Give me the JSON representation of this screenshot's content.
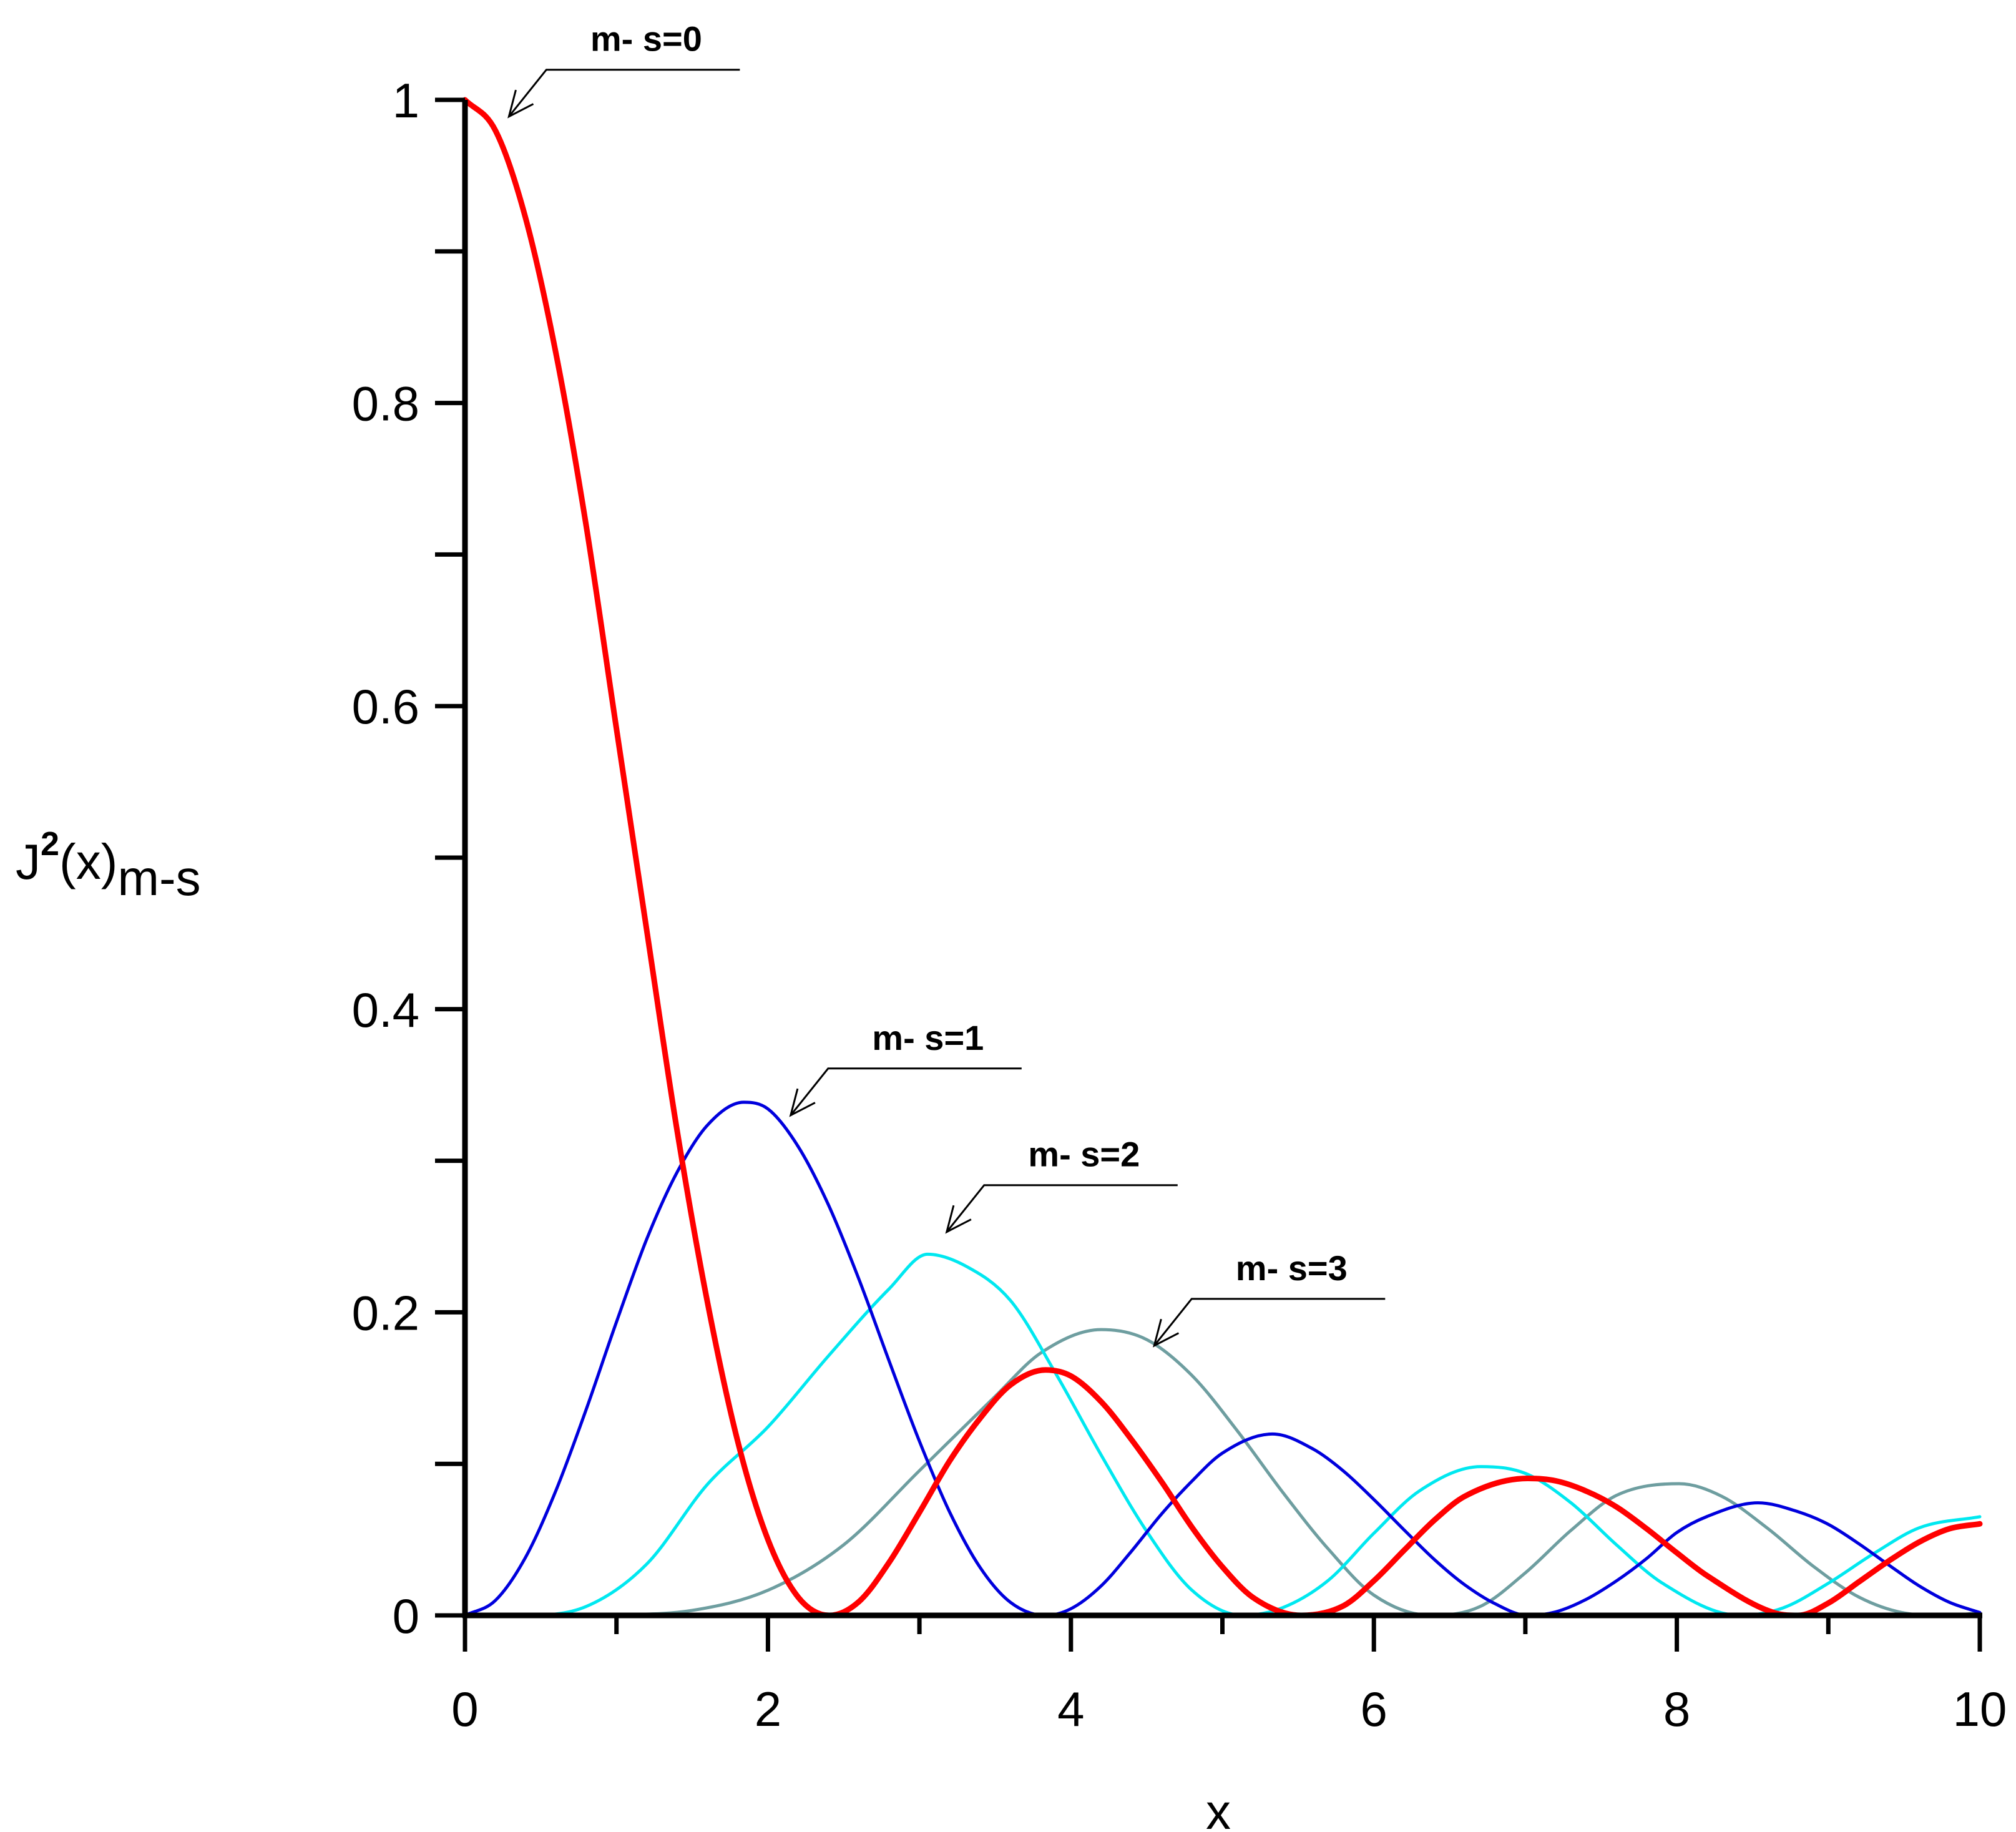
{
  "chart_data": {
    "type": "line",
    "xlabel": "x",
    "ylabel": {
      "base": "J",
      "superscript": "2",
      "middle": "(x)",
      "subscript": "m-s"
    },
    "xlim": [
      0,
      10
    ],
    "ylim": [
      0,
      1
    ],
    "x_ticks": [
      0,
      2,
      4,
      6,
      8,
      10
    ],
    "x_tick_labels": [
      "0",
      "2",
      "4",
      "6",
      "8",
      "10"
    ],
    "x_minor_step": 1,
    "y_ticks": [
      0,
      0.2,
      0.4,
      0.6,
      0.8,
      1
    ],
    "y_tick_labels": [
      "0",
      "0.2",
      "0.4",
      "0.6",
      "0.8",
      "1"
    ],
    "y_minor_step": 0.1,
    "grid": false,
    "legend": "none",
    "series": [
      {
        "order": 0,
        "color": "#ff0000",
        "stroke": "thick",
        "x": [
          0,
          0.2,
          0.4,
          0.6,
          0.8,
          1.0,
          1.2,
          1.4,
          1.6,
          1.8,
          2.0,
          2.2,
          2.405,
          2.6,
          2.8,
          3.0,
          3.2,
          3.4,
          3.6,
          3.832,
          4.0,
          4.2,
          4.4,
          4.6,
          4.8,
          5.0,
          5.2,
          5.52,
          5.8,
          6.0,
          6.2,
          6.4,
          6.6,
          7.016,
          7.2,
          7.4,
          7.6,
          7.8,
          8.0,
          8.2,
          8.654,
          8.8,
          9.0,
          9.2,
          9.4,
          9.6,
          9.8,
          10.0
        ],
        "y": [
          1.0,
          0.98,
          0.922,
          0.833,
          0.719,
          0.585,
          0.452,
          0.32,
          0.207,
          0.115,
          0.05,
          0.012,
          0.0,
          0.009,
          0.035,
          0.068,
          0.102,
          0.13,
          0.152,
          0.162,
          0.158,
          0.141,
          0.116,
          0.088,
          0.058,
          0.032,
          0.012,
          0.0,
          0.0064,
          0.0228,
          0.043,
          0.0629,
          0.0786,
          0.0904,
          0.0888,
          0.0821,
          0.0717,
          0.0572,
          0.0413,
          0.0262,
          0.0014,
          0.0,
          0.0081,
          0.022,
          0.036,
          0.0484,
          0.0572,
          0.0604
        ]
      },
      {
        "order": 1,
        "color": "#0000dd",
        "stroke": "normal",
        "x": [
          0,
          0.2,
          0.4,
          0.6,
          0.8,
          1.0,
          1.2,
          1.4,
          1.6,
          1.841,
          2.0,
          2.2,
          2.4,
          2.6,
          2.8,
          3.0,
          3.2,
          3.4,
          3.6,
          3.832,
          4.0,
          4.2,
          4.4,
          4.6,
          4.8,
          5.0,
          5.331,
          5.6,
          5.8,
          6.0,
          6.2,
          6.4,
          6.6,
          6.8,
          7.016,
          7.2,
          7.4,
          7.6,
          7.8,
          8.0,
          8.2,
          8.536,
          8.8,
          9.0,
          9.2,
          9.4,
          9.6,
          9.8,
          10.0
        ],
        "y": [
          0,
          0.0098,
          0.0384,
          0.0823,
          0.1359,
          0.1936,
          0.2483,
          0.2924,
          0.3234,
          0.3386,
          0.3342,
          0.3093,
          0.2707,
          0.222,
          0.1678,
          0.1149,
          0.0681,
          0.0317,
          0.0087,
          0.0,
          0.0044,
          0.0195,
          0.0424,
          0.0671,
          0.0887,
          0.1071,
          0.1197,
          0.1097,
          0.0952,
          0.0765,
          0.0564,
          0.0368,
          0.0202,
          0.0077,
          0.0,
          0.0023,
          0.0105,
          0.0227,
          0.0375,
          0.0547,
          0.0653,
          0.0743,
          0.0684,
          0.0601,
          0.0474,
          0.0332,
          0.0195,
          0.0086,
          0.0019
        ]
      },
      {
        "order": 2,
        "color": "#00e8f0",
        "stroke": "normal",
        "x": [
          0,
          0.4,
          0.8,
          1.2,
          1.6,
          2.0,
          2.4,
          2.8,
          3.054,
          3.3,
          3.6,
          3.9,
          4.2,
          4.5,
          4.8,
          5.136,
          5.4,
          5.7,
          6.0,
          6.3,
          6.706,
          7.0,
          7.3,
          7.6,
          7.9,
          8.417,
          8.7,
          9.0,
          9.3,
          9.6,
          10.0
        ],
        "y": [
          0,
          0.0001,
          0.0059,
          0.0339,
          0.0864,
          0.1244,
          0.1713,
          0.2155,
          0.2383,
          0.2308,
          0.2079,
          0.1596,
          0.1058,
          0.0555,
          0.0165,
          0.0,
          0.0052,
          0.0232,
          0.0542,
          0.0821,
          0.0982,
          0.0937,
          0.0744,
          0.0467,
          0.0216,
          0.0,
          0.0049,
          0.0212,
          0.0408,
          0.0578,
          0.0651
        ]
      },
      {
        "order": 3,
        "color": "#6e9ea0",
        "stroke": "normal",
        "x": [
          0,
          0.5,
          1.0,
          1.5,
          2.0,
          2.5,
          3.0,
          3.5,
          3.8,
          4.201,
          4.5,
          4.8,
          5.1,
          5.4,
          5.7,
          6.0,
          6.38,
          6.7,
          7.0,
          7.3,
          7.6,
          8.015,
          8.3,
          8.6,
          8.9,
          9.2,
          9.5,
          9.761,
          10.0
        ],
        "y": [
          0,
          0.0,
          0.0004,
          0.0033,
          0.0166,
          0.0466,
          0.0955,
          0.1445,
          0.1731,
          0.1886,
          0.182,
          0.1582,
          0.1216,
          0.081,
          0.0437,
          0.0134,
          0.0,
          0.0058,
          0.0281,
          0.056,
          0.0791,
          0.0869,
          0.0784,
          0.0574,
          0.0325,
          0.0122,
          0.0016,
          0.0,
          0.0016
        ]
      }
    ],
    "annotations": [
      {
        "text": "m- s=0",
        "series": 0,
        "x": 0.29,
        "y": 0.989
      },
      {
        "text": "m- s=1",
        "series": 1,
        "x": 2.15,
        "y": 0.33
      },
      {
        "text": "m- s=2",
        "series": 2,
        "x": 3.18,
        "y": 0.253
      },
      {
        "text": "m- s=3",
        "series": 3,
        "x": 4.55,
        "y": 0.178
      }
    ]
  }
}
